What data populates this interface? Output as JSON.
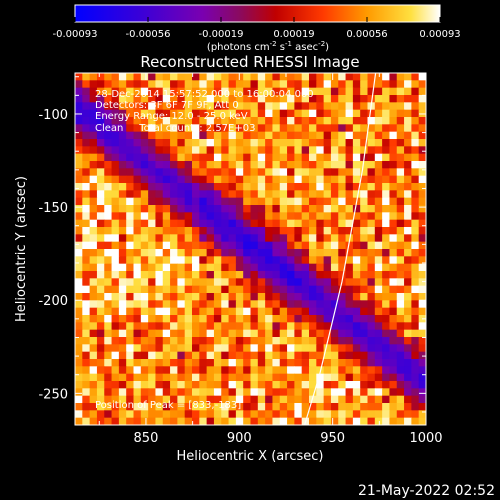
{
  "chart_data": {
    "type": "heatmap",
    "title": "Reconstructed RHESSI Image",
    "xlabel": "Heliocentric X (arcsec)",
    "ylabel": "Heliocentric Y (arcsec)",
    "xlim": [
      812,
      1000
    ],
    "ylim": [
      -267,
      -78
    ],
    "x_ticks": [
      850,
      900,
      950,
      1000
    ],
    "y_ticks": [
      -100,
      -150,
      -200,
      -250
    ],
    "colorbar": {
      "min": -0.00093,
      "max": 0.00093,
      "colormap": "blue-purple-red-yellow-white",
      "ticks": [
        "-0.00093",
        "-0.00056",
        "-0.00019",
        "0.00019",
        "0.00056",
        "0.00093"
      ],
      "unit_label": {
        "pre": "(photons cm",
        "sup1": "-2",
        "mid1": " s",
        "sup2": "-1",
        "mid2": " asec",
        "sup3": "-2",
        "post": ")"
      }
    },
    "info_lines": [
      "28-Dec-2014 15:57:52.000 to 16:00:04.000",
      "Detectors: 3F 6F 7F 9F, Att 0",
      "Energy Range: 12.0 - 25.0 keV",
      "Clean     Total counts: 2.57E+03"
    ],
    "peak_label": "Position of Peak = [833,-183]",
    "peak": {
      "x": 833,
      "y": -183
    },
    "limb_arc_points": [
      [
        973,
        -78
      ],
      [
        966,
        -130
      ],
      [
        955,
        -190
      ],
      [
        943,
        -240
      ],
      [
        935,
        -267
      ]
    ],
    "field_description": {
      "grid": [
        48,
        48
      ],
      "negative_band": "diagonal from upper-left to lower-right",
      "positive_regions": [
        "left side",
        "lower right"
      ]
    },
    "timestamp": "21-May-2022 02:52"
  }
}
